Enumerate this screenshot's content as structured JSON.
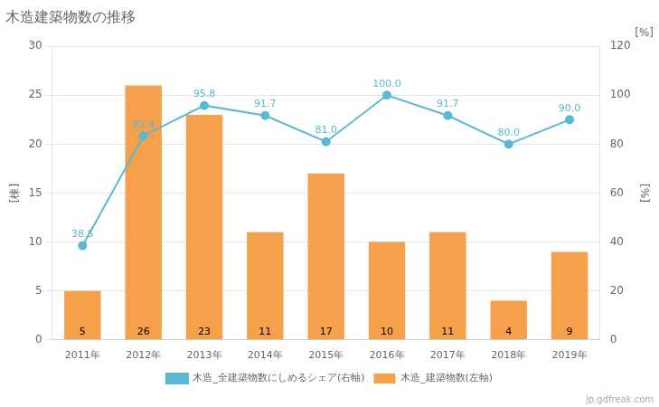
{
  "chart_data": {
    "type": "bar",
    "title": "木造建築物数の推移",
    "categories": [
      "2011年",
      "2012年",
      "2013年",
      "2014年",
      "2015年",
      "2016年",
      "2017年",
      "2018年",
      "2019年"
    ],
    "series": [
      {
        "name": "木造_建築物数(左軸)",
        "type": "bar",
        "color": "#f5a04a",
        "values": [
          5,
          26,
          23,
          11,
          17,
          10,
          11,
          4,
          9
        ]
      },
      {
        "name": "木造_全建築物数にしめるシェア(右軸)",
        "type": "line",
        "color": "#5bb8d4",
        "marker": "circle",
        "axis": "y2",
        "values": [
          38.5,
          83.4,
          95.8,
          91.7,
          81.0,
          100.0,
          91.7,
          80.0,
          90.0
        ],
        "value_labels": [
          "38.5",
          "83.4",
          "95.8",
          "91.7",
          "81.0",
          "100.0",
          "91.7",
          "80.0",
          "90.0"
        ]
      }
    ],
    "ylabel": "[棟]",
    "y2label": "[%]",
    "ylim": [
      0,
      30
    ],
    "yticks": [
      0,
      5,
      10,
      15,
      20,
      25,
      30
    ],
    "y2lim": [
      0,
      120
    ],
    "y2ticks": [
      0,
      20,
      40,
      60,
      80,
      100,
      120
    ],
    "grid": true,
    "legend": "bottom",
    "data_labels": true,
    "annotations": [
      {
        "text": "[%]"
      },
      {
        "text": "jp.gdfreak.com"
      }
    ]
  }
}
